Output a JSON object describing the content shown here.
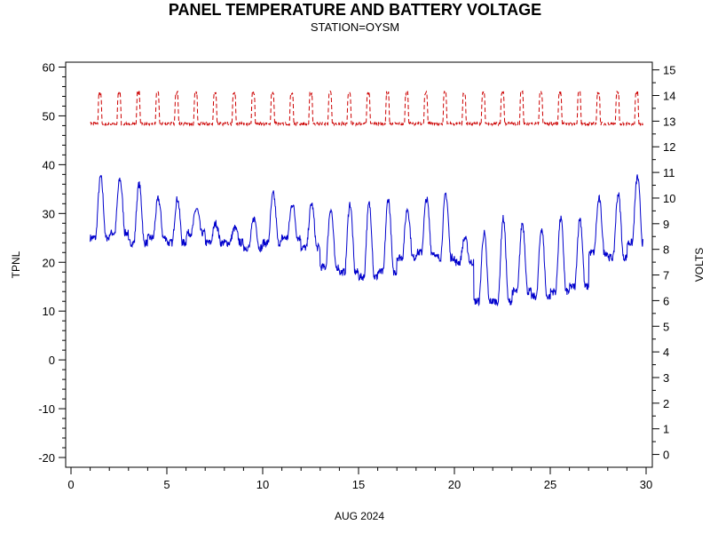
{
  "chart_data": {
    "type": "line",
    "title": "PANEL TEMPERATURE AND BATTERY VOLTAGE",
    "subtitle": "STATION=OYSM",
    "xlabel": "AUG 2024",
    "ylabel_left": "TPNL",
    "ylabel_right": "VOLTS",
    "xlim": [
      0,
      30
    ],
    "ylim_left": [
      -22,
      61
    ],
    "ylim_right": [
      -0.5,
      15.3
    ],
    "x_ticks": [
      0,
      5,
      10,
      15,
      20,
      25,
      30
    ],
    "y_ticks_left": [
      -20,
      -10,
      0,
      10,
      20,
      30,
      40,
      50,
      60
    ],
    "y_ticks_right": [
      0,
      1,
      2,
      3,
      4,
      5,
      6,
      7,
      8,
      9,
      10,
      11,
      12,
      13,
      14,
      15
    ],
    "grid": false,
    "legend": "none",
    "series": [
      {
        "axis": "left",
        "color": "#0000cc",
        "style": "solid",
        "daily_min": [
          25,
          26,
          24,
          25,
          24,
          26,
          24,
          24,
          23,
          24,
          25,
          23,
          19,
          18,
          17,
          18,
          21,
          22,
          21,
          20,
          12,
          12,
          14,
          13,
          14,
          15,
          22,
          21,
          24,
          25
        ],
        "daily_max": [
          37.5,
          37,
          36,
          33,
          33,
          31,
          28,
          27,
          29,
          34,
          32,
          32,
          31,
          32,
          32,
          33,
          31,
          33,
          34,
          25,
          26,
          29,
          28,
          27,
          29,
          29,
          33,
          34,
          37.5,
          31
        ],
        "values_note": ""
      },
      {
        "axis": "right",
        "color": "#cc0000",
        "style": "dashed",
        "baseline": 12.9,
        "peak": 14.1
      }
    ]
  }
}
